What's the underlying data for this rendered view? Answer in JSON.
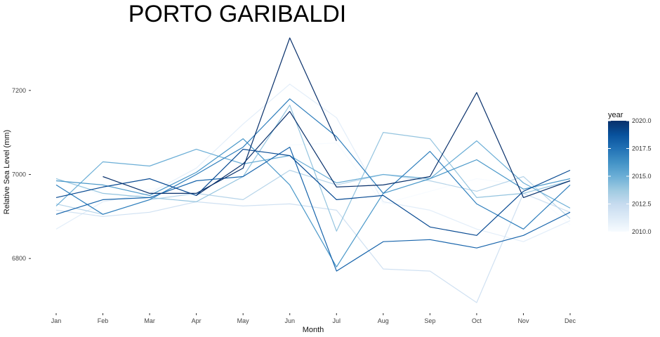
{
  "chart_data": {
    "type": "line",
    "title": "PORTO GARIBALDI",
    "xlabel": "Month",
    "ylabel": "Relative Sea Level (mm)",
    "categories": [
      "Jan",
      "Feb",
      "Mar",
      "Apr",
      "May",
      "Jun",
      "Jul",
      "Aug",
      "Sep",
      "Oct",
      "Nov",
      "Dec"
    ],
    "ylim": [
      6680,
      7340
    ],
    "yticks": [
      6800,
      7000,
      7200
    ],
    "grid": false,
    "legend": {
      "title": "year",
      "position": "right",
      "type": "colorbar",
      "range": [
        2010,
        2020
      ],
      "ticks": [
        "2010.0",
        "2012.5",
        "2015.0",
        "2017.5",
        "2020.0"
      ],
      "color_low": "#f7fbff",
      "color_high": "#08306b"
    },
    "series": [
      {
        "year": 2010,
        "values": [
          6990,
          6950,
          6965,
          6980,
          6990,
          7070,
          7075,
          6930,
          6960,
          6990,
          6975,
          6880
        ]
      },
      {
        "year": 2011,
        "values": [
          6870,
          6935,
          6955,
          7015,
          7120,
          7215,
          7135,
          6935,
          6915,
          6870,
          6840,
          6890
        ]
      },
      {
        "year": 2012,
        "values": [
          6915,
          6900,
          6910,
          6935,
          6925,
          6930,
          6915,
          6775,
          6770,
          6695,
          6955,
          6910
        ]
      },
      {
        "year": 2013,
        "values": [
          6930,
          6905,
          6940,
          6955,
          6940,
          7010,
          6975,
          7000,
          6985,
          6960,
          6995,
          6895
        ]
      },
      {
        "year": 2014,
        "values": [
          6990,
          6955,
          6945,
          6935,
          6995,
          7165,
          6865,
          7100,
          7085,
          6945,
          6955,
          6985
        ]
      },
      {
        "year": 2015,
        "values": [
          6925,
          7030,
          7020,
          7060,
          7025,
          7045,
          6980,
          7000,
          6990,
          7080,
          6980,
          6920
        ]
      },
      {
        "year": 2016,
        "values": [
          6985,
          6975,
          6950,
          7005,
          7085,
          6975,
          6780,
          6955,
          6990,
          7035,
          6965,
          6990
        ]
      },
      {
        "year": 2017,
        "values": [
          6975,
          6905,
          6940,
          7000,
          7065,
          7180,
          7090,
          6955,
          7055,
          6930,
          6870,
          6975
        ]
      },
      {
        "year": 2018,
        "values": [
          6905,
          6940,
          6945,
          6985,
          6995,
          7065,
          6770,
          6840,
          6845,
          6825,
          6855,
          6910
        ]
      },
      {
        "year": 2019,
        "values": [
          6945,
          6970,
          6990,
          6950,
          7060,
          7045,
          6940,
          6950,
          6875,
          6855,
          6960,
          7010
        ]
      },
      {
        "year": 2020,
        "values": [
          null,
          6995,
          6955,
          6955,
          7015,
          7325,
          7080,
          null,
          null,
          null,
          null,
          null
        ]
      },
      {
        "year": 2020,
        "values": [
          null,
          null,
          null,
          6950,
          7025,
          7150,
          6970,
          6975,
          6995,
          7195,
          6945,
          6985
        ]
      }
    ]
  }
}
